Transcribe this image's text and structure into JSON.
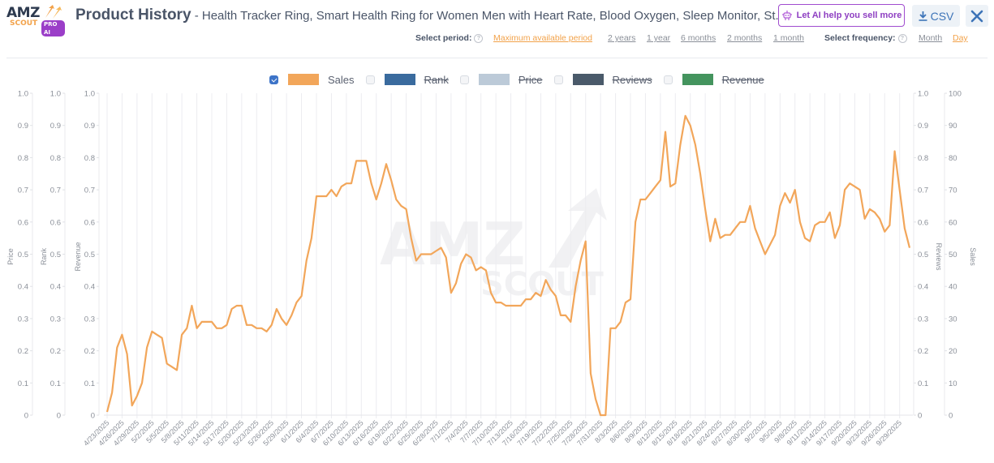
{
  "logo": {
    "brand_top": "AMZ",
    "brand_bottom": "SCOUT",
    "badge": "PRO AI"
  },
  "header": {
    "title": "Product History",
    "subtitle": " - Health Tracker Ring, Smart Health Ring for Women Men with Heart Rate, Blood Oxygen, Sleep Monitor, St...",
    "ai_button": "Let AI help you sell more",
    "csv_button": "CSV",
    "close_icon": "close-icon"
  },
  "period": {
    "label": "Select period:",
    "help": "?",
    "options": [
      "Maximum available period",
      "2 years",
      "1 year",
      "6 months",
      "2 months",
      "1 month"
    ],
    "active": "Maximum available period"
  },
  "frequency": {
    "label": "Select frequency:",
    "help": "?",
    "options": [
      "Month",
      "Day"
    ],
    "active": "Day"
  },
  "legend": [
    {
      "label": "Sales",
      "color": "#f2a65a",
      "checked": true
    },
    {
      "label": "Rank",
      "color": "#3a6b9e",
      "checked": false
    },
    {
      "label": "Price",
      "color": "#bccad8",
      "checked": false
    },
    {
      "label": "Reviews",
      "color": "#4a5a6a",
      "checked": false
    },
    {
      "label": "Revenue",
      "color": "#44945e",
      "checked": false
    }
  ],
  "watermark": {
    "top": "AMZ",
    "bottom": "SCOUT"
  },
  "chart_data": {
    "type": "line",
    "title": "Product History",
    "xlabel": "",
    "ylabel": "Sales",
    "ylim": [
      0,
      100
    ],
    "grid": true,
    "legend_position": "top",
    "axes": {
      "left": [
        {
          "label": "Price",
          "ticks": [
            "0",
            "0.1",
            "0.2",
            "0.3",
            "0.4",
            "0.5",
            "0.6",
            "0.7",
            "0.8",
            "0.9",
            "1.0"
          ]
        },
        {
          "label": "Rank",
          "ticks": [
            "0",
            "0.1",
            "0.2",
            "0.3",
            "0.4",
            "0.5",
            "0.6",
            "0.7",
            "0.8",
            "0.9",
            "1.0"
          ]
        },
        {
          "label": "Revenue",
          "ticks": [
            "0",
            "0.1",
            "0.2",
            "0.3",
            "0.4",
            "0.5",
            "0.6",
            "0.7",
            "0.8",
            "0.9",
            "1.0"
          ]
        }
      ],
      "right": [
        {
          "label": "Reviews",
          "ticks": [
            "0",
            "0.1",
            "0.2",
            "0.3",
            "0.4",
            "0.5",
            "0.6",
            "0.7",
            "0.8",
            "0.9",
            "1.0"
          ]
        },
        {
          "label": "Sales",
          "ticks": [
            "0",
            "10",
            "20",
            "30",
            "40",
            "50",
            "60",
            "70",
            "80",
            "90",
            "100"
          ]
        }
      ]
    },
    "x_tick_labels": [
      "4/23/2025",
      "4/26/2025",
      "4/29/2025",
      "5/2/2025",
      "5/5/2025",
      "5/8/2025",
      "5/11/2025",
      "5/14/2025",
      "5/17/2025",
      "5/20/2025",
      "5/23/2025",
      "5/26/2025",
      "5/29/2025",
      "6/1/2025",
      "6/4/2025",
      "6/7/2025",
      "6/10/2025",
      "6/13/2025",
      "6/16/2025",
      "6/19/2025",
      "6/22/2025",
      "6/25/2025",
      "6/28/2025",
      "7/1/2025",
      "7/4/2025",
      "7/7/2025",
      "7/10/2025",
      "7/13/2025",
      "7/16/2025",
      "7/19/2025",
      "7/22/2025",
      "7/25/2025",
      "7/28/2025",
      "7/31/2025",
      "8/3/2025",
      "8/6/2025",
      "8/9/2025",
      "8/12/2025",
      "8/15/2025",
      "8/18/2025",
      "8/21/2025",
      "8/24/2025",
      "8/27/2025",
      "8/30/2025",
      "9/2/2025",
      "9/5/2025",
      "9/8/2025",
      "9/11/2025",
      "9/14/2025",
      "9/17/2025",
      "9/20/2025",
      "9/23/2025",
      "9/26/2025",
      "9/29/2025"
    ],
    "x_start": "4/23/2025",
    "x_end": "9/30/2025",
    "series": [
      {
        "name": "Sales",
        "color": "#f2a65a",
        "values": [
          1,
          7,
          21,
          25,
          19,
          3,
          6,
          10,
          21,
          26,
          25,
          24,
          16,
          15,
          14,
          25,
          27,
          34,
          27,
          29,
          29,
          29,
          27,
          27,
          28,
          33,
          34,
          34,
          28,
          28,
          27,
          27,
          26,
          28,
          33,
          30,
          28,
          31,
          35,
          37,
          48,
          55,
          68,
          68,
          68,
          70,
          68,
          71,
          72,
          72,
          79,
          79,
          79,
          72,
          67,
          72,
          78,
          73,
          67,
          65,
          64,
          55,
          48,
          50,
          50,
          50,
          51,
          52,
          49,
          38,
          41,
          47,
          50,
          49,
          45,
          46,
          45,
          38,
          35,
          35,
          34,
          34,
          34,
          34,
          36,
          36,
          38,
          37,
          42,
          39,
          37,
          31,
          31,
          29,
          40,
          48,
          54,
          13,
          5,
          0,
          0,
          27,
          27,
          29,
          35,
          36,
          60,
          67,
          67,
          69,
          71,
          73,
          88,
          71,
          72,
          84,
          93,
          90,
          84,
          75,
          64,
          54,
          61,
          55,
          56,
          56,
          58,
          60,
          60,
          65,
          58,
          54,
          50,
          53,
          56,
          65,
          69,
          66,
          70,
          60,
          55,
          54,
          59,
          60,
          60,
          63,
          55,
          59,
          70,
          72,
          71,
          70,
          61,
          64,
          63,
          61,
          57,
          59,
          82,
          70,
          58,
          52
        ]
      }
    ]
  }
}
